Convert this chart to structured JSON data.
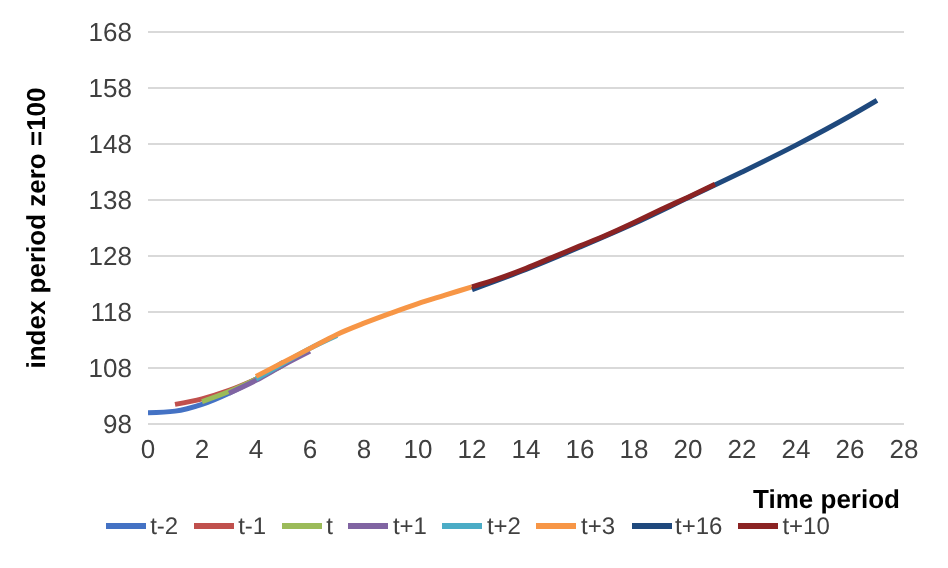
{
  "chart_data": {
    "type": "line",
    "xlabel": "Time period",
    "ylabel": "index period zero =100",
    "xlim": [
      0,
      28
    ],
    "xticks": [
      0,
      2,
      4,
      6,
      8,
      10,
      12,
      14,
      16,
      18,
      20,
      22,
      24,
      26,
      28
    ],
    "ylim": [
      98,
      168
    ],
    "yticks": [
      98,
      108,
      118,
      128,
      138,
      148,
      158,
      168
    ],
    "grid": "y",
    "legend": "bottom",
    "marker": "none",
    "line_style": "solid",
    "series": [
      {
        "name": "t-2",
        "color": "#4472c4",
        "x": [
          0,
          1,
          2,
          3,
          4,
          5
        ],
        "values": [
          100,
          100.3,
          101.5,
          103.5,
          106,
          109
        ]
      },
      {
        "name": "t-1",
        "color": "#c0504d",
        "x": [
          1,
          2,
          3,
          4
        ],
        "values": [
          101.5,
          102.5,
          104,
          106
        ]
      },
      {
        "name": "t",
        "color": "#9bbb59",
        "x": [
          2,
          3,
          4,
          5
        ],
        "values": [
          102,
          103.8,
          106,
          108.5
        ]
      },
      {
        "name": "t+1",
        "color": "#8064a2",
        "x": [
          3,
          4,
          5,
          6
        ],
        "values": [
          103.5,
          105.8,
          108.5,
          111
        ]
      },
      {
        "name": "t+2",
        "color": "#4bacc6",
        "x": [
          4,
          5,
          6,
          7
        ],
        "values": [
          106,
          108.8,
          111.5,
          113.8
        ]
      },
      {
        "name": "t+3",
        "color": "#f79646",
        "x": [
          4,
          5,
          6,
          7,
          8,
          9,
          10,
          11,
          12
        ],
        "values": [
          106.5,
          109,
          111.5,
          114,
          116,
          117.8,
          119.5,
          121,
          122.5
        ]
      },
      {
        "name": "t+16",
        "color": "#1f497d",
        "x": [
          12,
          14,
          16,
          18,
          20,
          22,
          24,
          26,
          27
        ],
        "values": [
          122,
          125.6,
          129.6,
          133.8,
          138.4,
          143,
          147.8,
          153,
          155.8
        ]
      },
      {
        "name": "t+10",
        "color": "#8b2323",
        "x": [
          12,
          13,
          14,
          15,
          16,
          17,
          18,
          19,
          20,
          21
        ],
        "values": [
          122.5,
          124,
          125.8,
          127.8,
          129.8,
          131.8,
          134,
          136.3,
          138.5,
          140.8
        ]
      }
    ]
  }
}
